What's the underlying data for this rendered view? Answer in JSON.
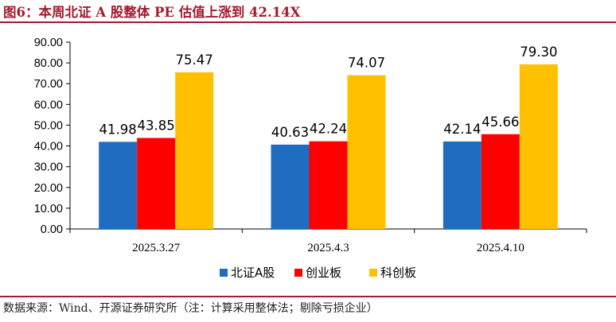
{
  "header": {
    "title": "图6：本周北证 A 股整体 PE 估值上涨到 42.14X"
  },
  "footer": {
    "source": "数据来源：Wind、开源证券研究所（注：计算采用整体法；剔除亏损企业）"
  },
  "chart_data": {
    "type": "bar",
    "title": "",
    "xlabel": "",
    "ylabel": "",
    "categories": [
      "2025.3.27",
      "2025.4.3",
      "2025.4.10"
    ],
    "series": [
      {
        "name": "北证A股",
        "color": "#1f6cc1",
        "values": [
          41.98,
          40.63,
          42.14
        ],
        "labels": [
          "41.98",
          "40.63",
          "42.14"
        ]
      },
      {
        "name": "创业板",
        "color": "#ff0000",
        "values": [
          43.85,
          42.24,
          45.66
        ],
        "labels": [
          "43.85",
          "42.24",
          "45.66"
        ]
      },
      {
        "name": "科创板",
        "color": "#ffc000",
        "values": [
          75.47,
          74.07,
          79.3
        ],
        "labels": [
          "75.47",
          "74.07",
          "79.30"
        ]
      }
    ],
    "ylim": [
      0,
      90
    ],
    "yticks": [
      "0.00",
      "10.00",
      "20.00",
      "30.00",
      "40.00",
      "50.00",
      "60.00",
      "70.00",
      "80.00",
      "90.00"
    ],
    "grid": false,
    "legend_position": "bottom"
  }
}
